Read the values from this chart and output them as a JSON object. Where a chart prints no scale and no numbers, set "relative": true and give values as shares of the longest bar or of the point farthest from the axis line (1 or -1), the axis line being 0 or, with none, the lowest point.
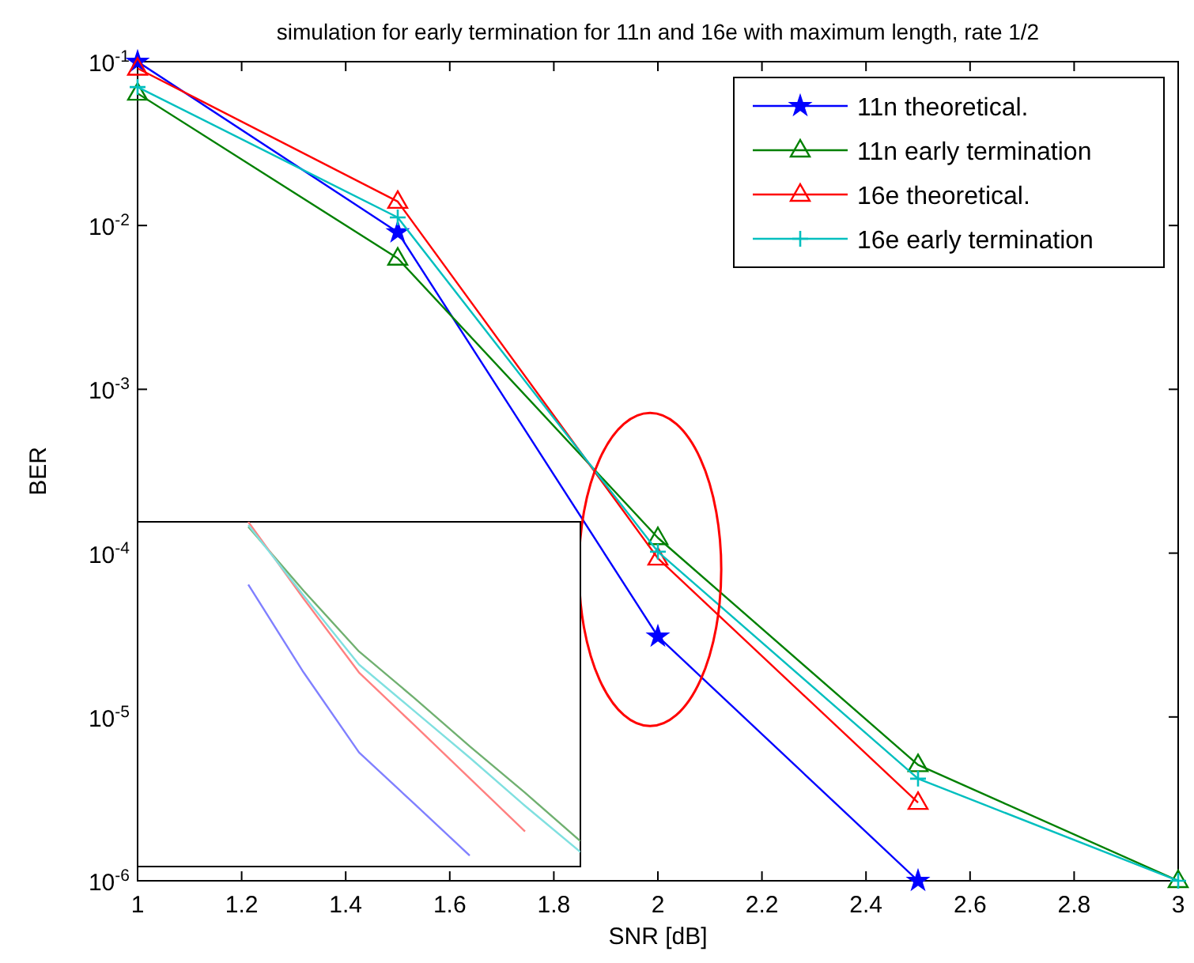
{
  "chart_data": [
    {
      "type": "line",
      "title": "simulation for early termination for 11n and 16e with maximum length, rate 1/2",
      "xlabel": "SNR [dB]",
      "ylabel": "BER",
      "x": [
        1,
        1.5,
        2,
        2.5,
        3
      ],
      "xlim": [
        1,
        3
      ],
      "xticks": [
        1,
        1.2,
        1.4,
        1.6,
        1.8,
        2,
        2.2,
        2.4,
        2.6,
        2.8,
        3
      ],
      "log": true,
      "ylim": [
        1e-06,
        0.1
      ],
      "yticks": [
        {
          "value": 1e-06,
          "label": "10$^{-6}$"
        },
        {
          "value": 1e-05,
          "label": "10$^{-5}$"
        },
        {
          "value": 0.0001,
          "label": "10$^{-4}$"
        },
        {
          "value": 0.001,
          "label": "10$^{-3}$"
        },
        {
          "value": 0.01,
          "label": "10$^{-2}$"
        },
        {
          "value": 0.1,
          "label": "10$^{-1}$"
        }
      ],
      "grid": false,
      "legend": "top right",
      "series": [
        {
          "name": "11n theoretical.",
          "color": "#0000ff",
          "marker": "star",
          "values": [
            0.1,
            0.0091,
            3.1e-05,
            1e-06,
            null
          ]
        },
        {
          "name": "11n early termination",
          "color": "#008000",
          "marker": "triangle",
          "values": [
            0.064,
            0.0063,
            0.000124,
            5.1e-06,
            1e-06
          ]
        },
        {
          "name": "16e theoretical.",
          "color": "#ff0000",
          "marker": "triangle",
          "values": [
            0.091,
            0.014,
            9.3e-05,
            3e-06,
            null
          ]
        },
        {
          "name": "16e early termination",
          "color": "#00bfbf",
          "marker": "cross",
          "values": [
            0.07,
            0.0112,
            0.000102,
            4.2e-06,
            1e-06
          ]
        }
      ]
    },
    {
      "type": "line",
      "relative": true,
      "categories": [
        null,
        null,
        null,
        null,
        null,
        null,
        null,
        null,
        null
      ],
      "series": [
        {
          "color": "#8080ff",
          "values": [
            null,
            null,
            0.818,
            0.563,
            0.331,
            0.182,
            0.032,
            null,
            null
          ]
        },
        {
          "color": "#70b070",
          "values": [
            null,
            null,
            0.986,
            0.8,
            0.624,
            0.489,
            0.349,
            0.214,
            0.074
          ]
        },
        {
          "color": "#ff8080",
          "values": [
            null,
            null,
            1,
            0.777,
            0.563,
            0.41,
            0.256,
            0.102,
            null
          ]
        },
        {
          "color": "#80e0e0",
          "values": [
            null,
            null,
            0.991,
            0.786,
            0.586,
            0.451,
            0.316,
            0.176,
            0.042
          ]
        }
      ]
    }
  ]
}
